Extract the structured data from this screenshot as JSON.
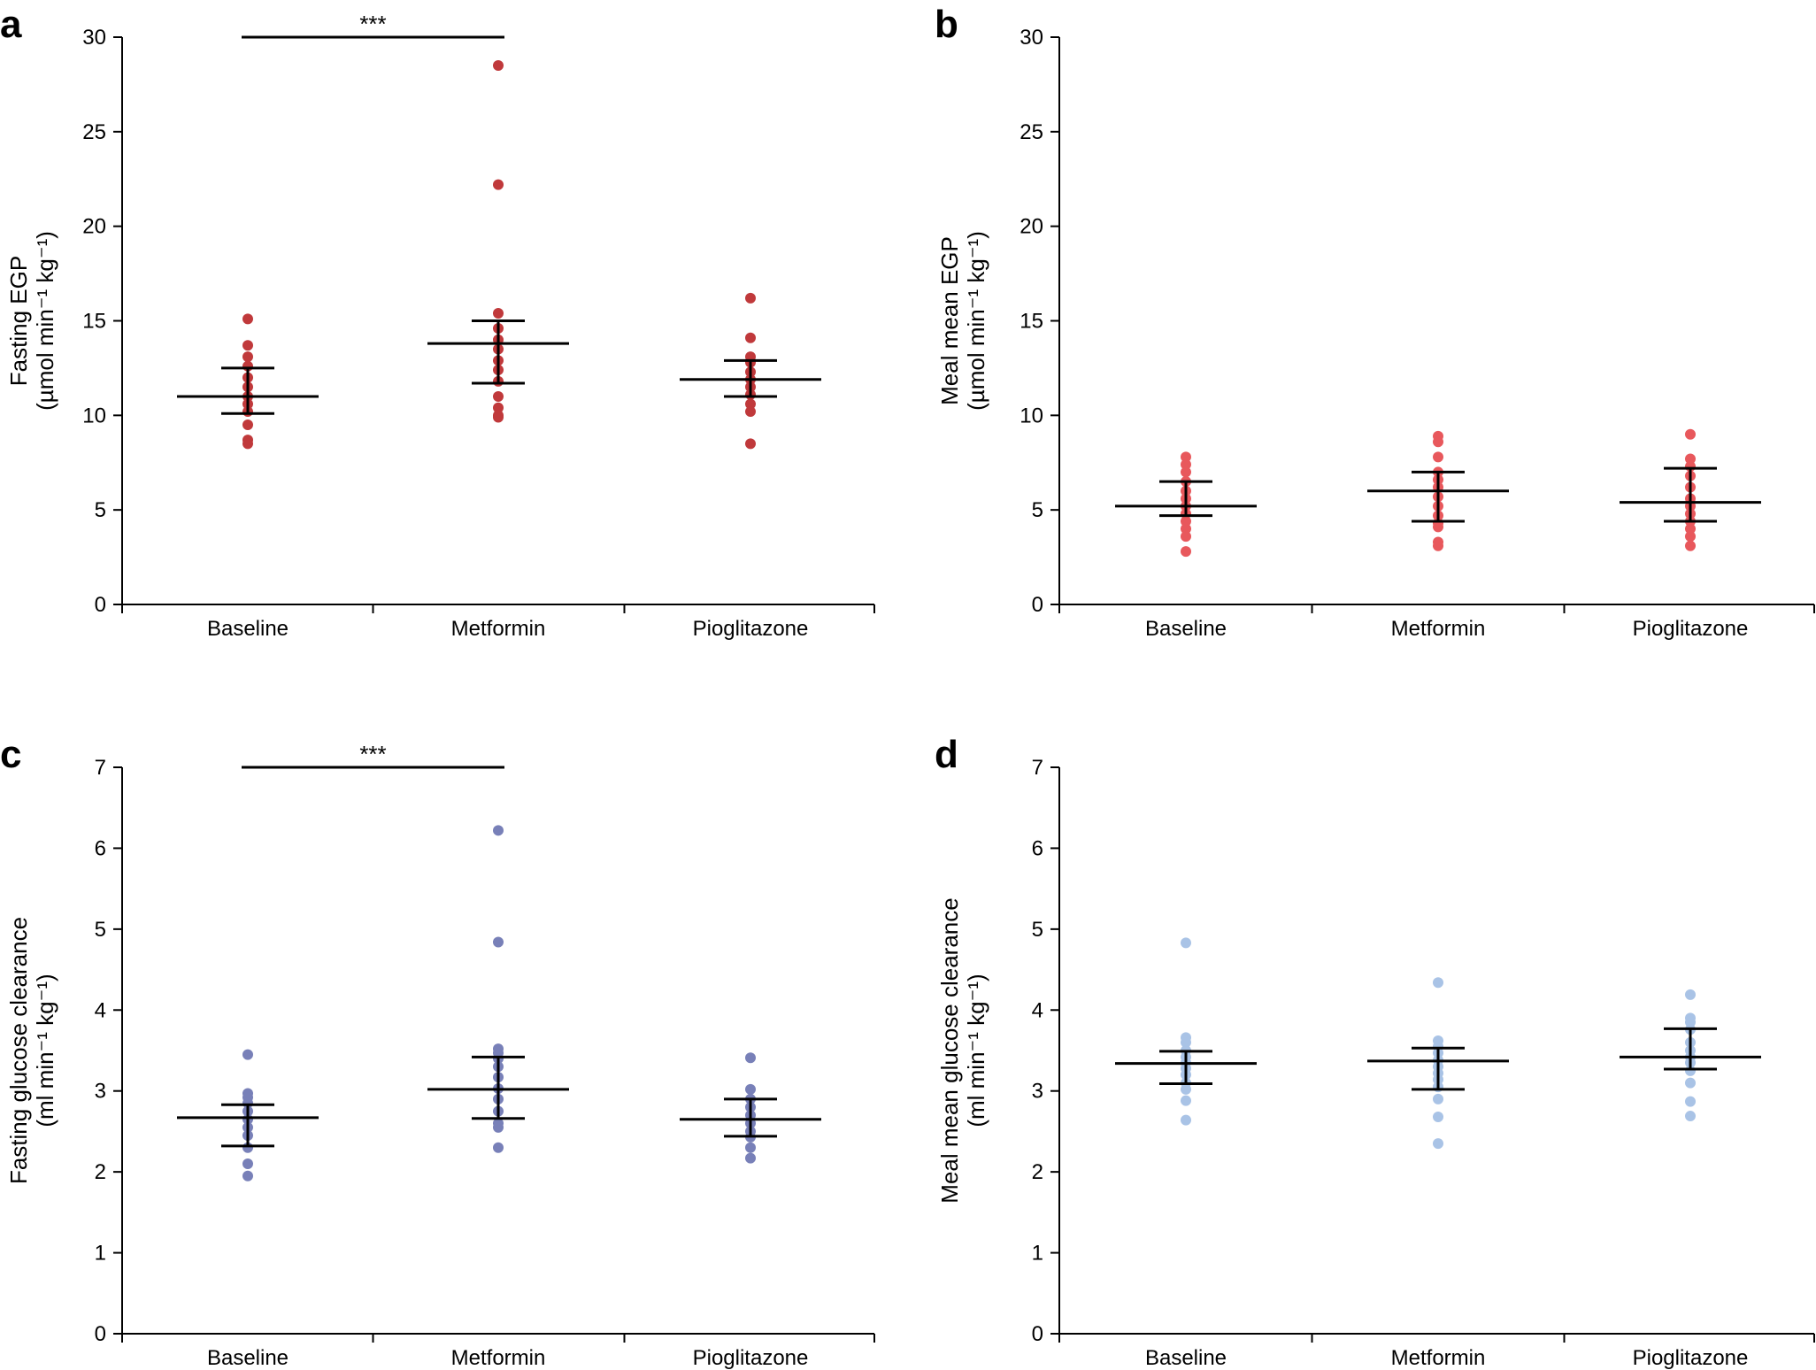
{
  "chart_data": [
    {
      "panel_label": "a",
      "type": "scatter",
      "ylabel": [
        "Fasting EGP",
        "(µmol min⁻¹ kg⁻¹)"
      ],
      "categories": [
        "Baseline",
        "Metformin",
        "Pioglitazone"
      ],
      "ylim": [
        0,
        30
      ],
      "yticks": [
        0,
        5,
        10,
        15,
        20,
        25,
        30
      ],
      "point_color": "#c0393b",
      "groups": [
        {
          "name": "Baseline",
          "points": [
            15.1,
            13.7,
            13.1,
            12.6,
            12.0,
            11.5,
            11.0,
            10.6,
            10.2,
            9.5,
            8.7,
            8.5
          ],
          "mean": 11.0,
          "upper": 12.5,
          "lower": 10.1
        },
        {
          "name": "Metformin",
          "points": [
            28.5,
            22.2,
            15.4,
            14.6,
            14.0,
            13.5,
            12.9,
            12.4,
            11.8,
            11.0,
            10.4,
            10.0,
            9.9
          ],
          "mean": 13.8,
          "upper": 15.0,
          "lower": 11.7
        },
        {
          "name": "Pioglitazone",
          "points": [
            16.2,
            14.1,
            13.1,
            12.8,
            12.3,
            11.9,
            11.5,
            11.1,
            10.6,
            10.2,
            8.5
          ],
          "mean": 11.9,
          "upper": 12.9,
          "lower": 11.0
        }
      ],
      "significance": {
        "from": "Baseline",
        "to": "Metformin",
        "label": "***",
        "y": 30
      }
    },
    {
      "panel_label": "b",
      "type": "scatter",
      "ylabel": [
        "Meal mean EGP",
        "(µmol min⁻¹ kg⁻¹)"
      ],
      "categories": [
        "Baseline",
        "Metformin",
        "Pioglitazone"
      ],
      "ylim": [
        0,
        30
      ],
      "yticks": [
        0,
        5,
        10,
        15,
        20,
        25,
        30
      ],
      "point_color": "#e8585c",
      "groups": [
        {
          "name": "Baseline",
          "points": [
            7.8,
            7.4,
            7.0,
            6.5,
            6.0,
            5.6,
            5.2,
            4.8,
            4.4,
            4.0,
            3.6,
            2.8
          ],
          "mean": 5.2,
          "upper": 6.5,
          "lower": 4.7
        },
        {
          "name": "Metformin",
          "points": [
            8.9,
            8.6,
            7.8,
            7.0,
            6.6,
            6.2,
            5.7,
            5.2,
            4.7,
            4.3,
            4.1,
            3.3,
            3.1
          ],
          "mean": 6.0,
          "upper": 7.0,
          "lower": 4.4
        },
        {
          "name": "Pioglitazone",
          "points": [
            9.0,
            7.7,
            7.3,
            6.8,
            6.2,
            5.6,
            5.2,
            4.8,
            4.4,
            4.0,
            3.6,
            3.1
          ],
          "mean": 5.4,
          "upper": 7.2,
          "lower": 4.4
        }
      ]
    },
    {
      "panel_label": "c",
      "type": "scatter",
      "ylabel": [
        "Fasting glucose clearance",
        "(ml min⁻¹ kg⁻¹)"
      ],
      "categories": [
        "Baseline",
        "Metformin",
        "Pioglitazone"
      ],
      "ylim": [
        0,
        7
      ],
      "yticks": [
        0,
        1,
        2,
        3,
        4,
        5,
        6,
        7
      ],
      "point_color": "#7880b8",
      "groups": [
        {
          "name": "Baseline",
          "points": [
            3.45,
            2.97,
            2.92,
            2.85,
            2.75,
            2.65,
            2.55,
            2.45,
            2.3,
            2.1,
            1.95
          ],
          "mean": 2.67,
          "upper": 2.83,
          "lower": 2.32
        },
        {
          "name": "Metformin",
          "points": [
            6.22,
            4.84,
            3.52,
            3.47,
            3.4,
            3.3,
            3.17,
            3.03,
            2.9,
            2.75,
            2.6,
            2.55,
            2.3
          ],
          "mean": 3.02,
          "upper": 3.42,
          "lower": 2.66
        },
        {
          "name": "Pioglitazone",
          "points": [
            3.41,
            3.02,
            2.9,
            2.8,
            2.7,
            2.6,
            2.5,
            2.43,
            2.3,
            2.17
          ],
          "mean": 2.65,
          "upper": 2.9,
          "lower": 2.44
        }
      ],
      "significance": {
        "from": "Baseline",
        "to": "Metformin",
        "label": "***",
        "y": 7
      }
    },
    {
      "panel_label": "d",
      "type": "scatter",
      "ylabel": [
        "Meal mean glucose clearance",
        "(ml min⁻¹ kg⁻¹)"
      ],
      "categories": [
        "Baseline",
        "Metformin",
        "Pioglitazone"
      ],
      "ylim": [
        0,
        7
      ],
      "yticks": [
        0,
        1,
        2,
        3,
        4,
        5,
        6,
        7
      ],
      "point_color": "#a9c3e6",
      "groups": [
        {
          "name": "Baseline",
          "points": [
            4.83,
            3.66,
            3.6,
            3.5,
            3.42,
            3.35,
            3.28,
            3.2,
            3.1,
            3.02,
            2.88,
            2.64
          ],
          "mean": 3.34,
          "upper": 3.49,
          "lower": 3.09
        },
        {
          "name": "Metformin",
          "points": [
            4.34,
            3.62,
            3.55,
            3.47,
            3.38,
            3.3,
            3.22,
            3.14,
            3.05,
            2.9,
            2.68,
            2.35
          ],
          "mean": 3.37,
          "upper": 3.53,
          "lower": 3.02
        },
        {
          "name": "Pioglitazone",
          "points": [
            4.19,
            3.9,
            3.85,
            3.76,
            3.6,
            3.5,
            3.42,
            3.35,
            3.25,
            3.1,
            2.87,
            2.69
          ],
          "mean": 3.42,
          "upper": 3.77,
          "lower": 3.27
        }
      ]
    }
  ]
}
